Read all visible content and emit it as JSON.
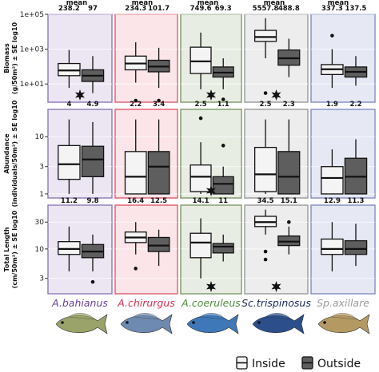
{
  "colors": {
    "inside_fill": "#f4f4f4",
    "outside_fill": "#5e5e5e",
    "panel_bg": [
      "#ece6f3",
      "#fbe5e8",
      "#e8ede3",
      "#ededed",
      "#e6e9f4"
    ],
    "panel_border": [
      "#8e78b6",
      "#e05a6f",
      "#7b9a68",
      "#9a9a9a",
      "#7f8dc3"
    ],
    "species_text": [
      "#6b3f9f",
      "#d9304e",
      "#4f8a3a",
      "#1b2a60",
      "#9a9a9a"
    ],
    "fish": [
      "#9aa36a",
      "#6e8ab0",
      "#3f78b8",
      "#2c4f8c",
      "#b49a62"
    ]
  },
  "chart_data": {
    "type": "box",
    "legend": {
      "position": "bottom-right",
      "entries": [
        "Inside",
        "Outside"
      ]
    },
    "species": [
      "A.bahianus",
      "A.chirurgus",
      "A.coeruleus",
      "Sc.trispinosus",
      "Sp.axillare"
    ],
    "mean_header": "mean",
    "rows": [
      {
        "id": "biomass",
        "ylabel_line1": "Biomass",
        "ylabel_line2": "(g/50m²) ± SE  log10",
        "scale": "log10",
        "ylim": [
          0.9,
          100000
        ],
        "ticks": [
          {
            "v": 10,
            "label": "1e+01"
          },
          {
            "v": 1000,
            "label": "1e+03"
          },
          {
            "v": 100000,
            "label": "1e+05"
          }
        ],
        "stats": [
          [
            "238.2",
            "97"
          ],
          [
            "234.3",
            "101.7"
          ],
          [
            "749.6",
            "69.3"
          ],
          [
            "5557.8",
            "488.8"
          ],
          [
            "337.3",
            "137.5"
          ]
        ],
        "stars": [
          true,
          false,
          true,
          true,
          false
        ],
        "boxes": [
          [
            {
              "q1": 30,
              "med": 60,
              "q3": 150,
              "wlo": 6,
              "whi": 900,
              "out": []
            },
            {
              "q1": 14,
              "med": 30,
              "q3": 65,
              "wlo": 3,
              "whi": 400,
              "out": []
            }
          ],
          [
            {
              "q1": 65,
              "med": 150,
              "q3": 400,
              "wlo": 12,
              "whi": 2500,
              "out": [
                0.4
              ]
            },
            {
              "q1": 50,
              "med": 100,
              "q3": 230,
              "wlo": 6,
              "whi": 1200,
              "out": [
                0.4
              ]
            }
          ],
          [
            {
              "q1": 40,
              "med": 200,
              "q3": 1300,
              "wlo": 5,
              "whi": 9000,
              "out": []
            },
            {
              "q1": 25,
              "med": 45,
              "q3": 95,
              "wlo": 5,
              "whi": 300,
              "out": [
                1.3
              ]
            }
          ],
          [
            {
              "q1": 2800,
              "med": 5000,
              "q3": 12000,
              "wlo": 300,
              "whi": 60000,
              "out": [
                3
              ]
            },
            {
              "q1": 120,
              "med": 300,
              "q3": 900,
              "wlo": 25,
              "whi": 4000,
              "out": []
            }
          ],
          [
            {
              "q1": 35,
              "med": 70,
              "q3": 130,
              "wlo": 6,
              "whi": 1000,
              "out": [
                6000
              ]
            },
            {
              "q1": 25,
              "med": 50,
              "q3": 95,
              "wlo": 8,
              "whi": 400,
              "out": []
            }
          ]
        ]
      },
      {
        "id": "abundance",
        "ylabel_line1": "Abundance",
        "ylabel_line2": "(individuals/50m²) ± SE  log10",
        "scale": "log10",
        "ylim": [
          0.85,
          30
        ],
        "ticks": [
          {
            "v": 1,
            "label": "1"
          },
          {
            "v": 3,
            "label": "3"
          },
          {
            "v": 10,
            "label": "10"
          }
        ],
        "stats": [
          [
            "4",
            "4.9"
          ],
          [
            "2.2",
            "3.4"
          ],
          [
            "2.5",
            "1.1"
          ],
          [
            "2.5",
            "2.3"
          ],
          [
            "1.9",
            "2.2"
          ]
        ],
        "stars": [
          false,
          false,
          true,
          false,
          false
        ],
        "boxes": [
          [
            {
              "q1": 1.8,
              "med": 3.3,
              "q3": 7,
              "wlo": 1,
              "whi": 20,
              "out": []
            },
            {
              "q1": 2,
              "med": 4,
              "q3": 6.8,
              "wlo": 1,
              "whi": 18,
              "out": []
            }
          ],
          [
            {
              "q1": 1,
              "med": 2,
              "q3": 5.5,
              "wlo": 1,
              "whi": 20,
              "out": []
            },
            {
              "q1": 1,
              "med": 3,
              "q3": 5.5,
              "wlo": 1,
              "whi": 20,
              "out": []
            }
          ],
          [
            {
              "q1": 1.1,
              "med": 2,
              "q3": 3.2,
              "wlo": 1,
              "whi": 8,
              "out": [
                21
              ]
            },
            {
              "q1": 1,
              "med": 1.5,
              "q3": 2,
              "wlo": 1,
              "whi": 3,
              "out": [
                7
              ]
            }
          ],
          [
            {
              "q1": 1.1,
              "med": 2.2,
              "q3": 6.5,
              "wlo": 1,
              "whi": 20,
              "out": []
            },
            {
              "q1": 1,
              "med": 2,
              "q3": 5.5,
              "wlo": 1,
              "whi": 20,
              "out": []
            }
          ],
          [
            {
              "q1": 1,
              "med": 1.9,
              "q3": 3,
              "wlo": 1,
              "whi": 6,
              "out": []
            },
            {
              "q1": 1,
              "med": 2,
              "q3": 4.2,
              "wlo": 1,
              "whi": 9,
              "out": []
            }
          ]
        ]
      },
      {
        "id": "length",
        "ylabel_line1": "Total Length",
        "ylabel_line2": "(cm/50m²) ± SE  log10",
        "scale": "log10",
        "ylim": [
          1.6,
          60
        ],
        "ticks": [
          {
            "v": 3,
            "label": "3"
          },
          {
            "v": 10,
            "label": "10"
          },
          {
            "v": 30,
            "label": "30"
          }
        ],
        "stats": [
          [
            "11.2",
            "9.8"
          ],
          [
            "16.4",
            "12.5"
          ],
          [
            "14.1",
            "11"
          ],
          [
            "34.5",
            "15.1"
          ],
          [
            "12.9",
            "11.3"
          ]
        ],
        "stars": [
          false,
          false,
          true,
          true,
          false
        ],
        "boxes": [
          [
            {
              "q1": 8,
              "med": 10,
              "q3": 13.5,
              "wlo": 4,
              "whi": 25,
              "out": []
            },
            {
              "q1": 7,
              "med": 9,
              "q3": 12,
              "wlo": 4,
              "whi": 18,
              "out": [
                2.6
              ]
            }
          ],
          [
            {
              "q1": 13,
              "med": 16,
              "q3": 20,
              "wlo": 8,
              "whi": 30,
              "out": [
                4.5
              ]
            },
            {
              "q1": 9,
              "med": 11.5,
              "q3": 16,
              "wlo": 5,
              "whi": 22,
              "out": []
            }
          ],
          [
            {
              "q1": 7,
              "med": 13,
              "q3": 19,
              "wlo": 3,
              "whi": 35,
              "out": []
            },
            {
              "q1": 8.5,
              "med": 11,
              "q3": 12.5,
              "wlo": 6,
              "whi": 18,
              "out": []
            }
          ],
          [
            {
              "q1": 25,
              "med": 30,
              "q3": 38,
              "wlo": 18,
              "whi": 50,
              "out": [
                6.5,
                9
              ]
            },
            {
              "q1": 11.5,
              "med": 13.5,
              "q3": 17,
              "wlo": 8,
              "whi": 25,
              "out": [
                30
              ]
            }
          ],
          [
            {
              "q1": 8,
              "med": 10,
              "q3": 15,
              "wlo": 4,
              "whi": 30,
              "out": []
            },
            {
              "q1": 8,
              "med": 10,
              "q3": 14,
              "wlo": 5,
              "whi": 28,
              "out": []
            }
          ]
        ]
      }
    ]
  }
}
